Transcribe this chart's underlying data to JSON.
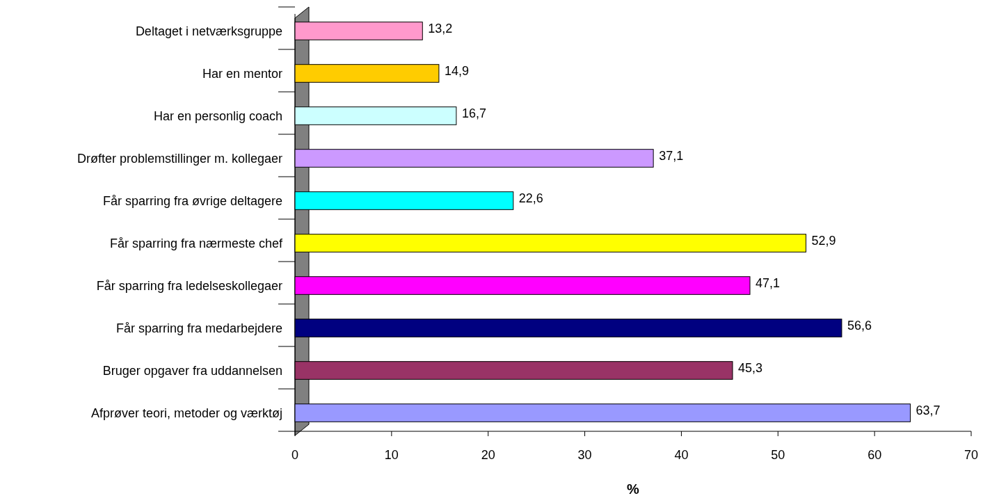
{
  "chart_data": {
    "type": "bar",
    "orientation": "horizontal",
    "xlabel": "%",
    "categories": [
      "Deltaget i netværksgruppe",
      "Har en mentor",
      "Har en personlig coach",
      "Drøfter problemstillinger m. kollegaer",
      "Får sparring fra øvrige deltagere",
      "Får sparring fra nærmeste chef",
      "Får sparring fra ledelseskollegaer",
      "Får sparring fra medarbejdere",
      "Bruger opgaver fra uddannelsen",
      "Afprøver teori, metoder og værktøj"
    ],
    "values": [
      13.2,
      14.9,
      16.7,
      37.1,
      22.6,
      52.9,
      47.1,
      56.6,
      45.3,
      63.7
    ],
    "value_labels": [
      "13,2",
      "14,9",
      "16,7",
      "37,1",
      "22,6",
      "52,9",
      "47,1",
      "56,6",
      "45,3",
      "63,7"
    ],
    "colors": [
      "#ff99cc",
      "#ffcc00",
      "#ccffff",
      "#cc99ff",
      "#00ffff",
      "#ffff00",
      "#ff00ff",
      "#000080",
      "#993366",
      "#9999ff"
    ],
    "xlim": [
      0,
      70
    ],
    "xticks": [
      0,
      10,
      20,
      30,
      40,
      50,
      60,
      70
    ]
  }
}
